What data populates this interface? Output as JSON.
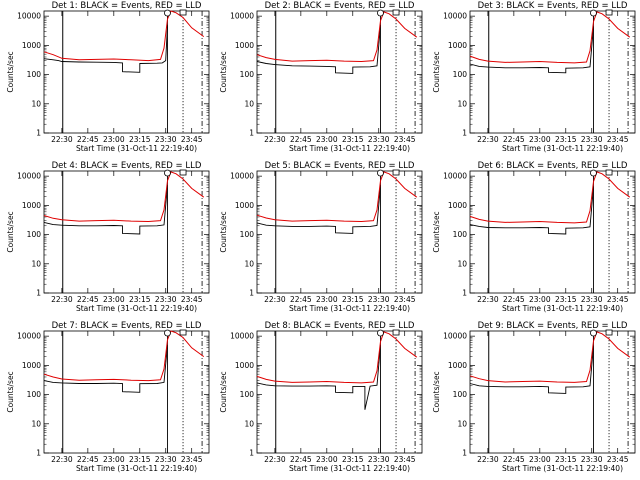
{
  "colors": {
    "events": "#000000",
    "lld": "#e00000"
  },
  "chart_data": [
    {
      "type": "line",
      "title": "Det 1: BLACK = Events, RED = LLD",
      "xlabel": "Start Time (31-Oct-11 22:19:40)",
      "ylabel": "Counts/sec",
      "x_ticks": [
        "22:30",
        "22:45",
        "23:00",
        "23:15",
        "23:30",
        "23:45"
      ],
      "y_ticks": [
        "1",
        "10",
        "100",
        "1000",
        "10000"
      ],
      "y_scale": "log",
      "ylim": [
        1,
        15000
      ],
      "series": [
        {
          "color": "black",
          "x": [
            "22:19:40",
            "22:25",
            "22:28",
            "22:30",
            "22:40",
            "22:50",
            "23:00",
            "23:05",
            "23:05",
            "23:15",
            "23:15",
            "23:25",
            "23:28",
            "23:30",
            "23:31"
          ],
          "y": [
            350,
            320,
            300,
            280,
            270,
            265,
            260,
            250,
            125,
            120,
            240,
            245,
            250,
            300,
            5000
          ]
        },
        {
          "color": "red",
          "x": [
            "22:19:40",
            "22:25",
            "22:30",
            "22:40",
            "22:50",
            "23:00",
            "23:10",
            "23:20",
            "23:27",
            "23:29",
            "23:31",
            "23:33",
            "23:36",
            "23:40",
            "23:45",
            "23:52"
          ],
          "y": [
            600,
            480,
            360,
            320,
            330,
            340,
            320,
            300,
            330,
            800,
            8000,
            15000,
            13000,
            9000,
            4000,
            2000
          ]
        }
      ]
    },
    {
      "type": "line",
      "title": "Det 2: BLACK = Events, RED = LLD",
      "xlabel": "Start Time (31-Oct-11 22:19:40)",
      "ylabel": "Counts/sec",
      "x_ticks": [
        "22:30",
        "22:45",
        "23:00",
        "23:15",
        "23:30",
        "23:45"
      ],
      "y_ticks": [
        "1",
        "10",
        "100",
        "1000",
        "10000"
      ],
      "y_scale": "log",
      "ylim": [
        1,
        15000
      ],
      "series": [
        {
          "color": "black",
          "x": [
            "22:19:40",
            "22:25",
            "22:30",
            "22:40",
            "22:50",
            "23:00",
            "23:05",
            "23:05",
            "23:15",
            "23:15",
            "23:25",
            "23:29",
            "23:31"
          ],
          "y": [
            280,
            240,
            220,
            200,
            195,
            190,
            185,
            115,
            110,
            180,
            185,
            200,
            5000
          ]
        },
        {
          "color": "red",
          "x": [
            "22:19:40",
            "22:25",
            "22:30",
            "22:40",
            "22:50",
            "23:00",
            "23:10",
            "23:20",
            "23:27",
            "23:29",
            "23:31",
            "23:33",
            "23:36",
            "23:40",
            "23:45",
            "23:52"
          ],
          "y": [
            480,
            380,
            330,
            290,
            300,
            310,
            290,
            280,
            300,
            700,
            7000,
            14000,
            12000,
            8000,
            3800,
            1900
          ]
        }
      ]
    },
    {
      "type": "line",
      "title": "Det 3: BLACK = Events, RED = LLD",
      "xlabel": "Start Time (31-Oct-11 22:19:40)",
      "ylabel": "Counts/sec",
      "x_ticks": [
        "22:30",
        "22:45",
        "23:00",
        "23:15",
        "23:30",
        "23:45"
      ],
      "y_ticks": [
        "1",
        "10",
        "100",
        "1000",
        "10000"
      ],
      "y_scale": "log",
      "ylim": [
        1,
        15000
      ],
      "series": [
        {
          "color": "black",
          "x": [
            "22:19:40",
            "22:25",
            "22:30",
            "22:40",
            "22:50",
            "23:00",
            "23:05",
            "23:05",
            "23:15",
            "23:15",
            "23:25",
            "23:29",
            "23:31"
          ],
          "y": [
            230,
            190,
            180,
            170,
            170,
            175,
            170,
            120,
            115,
            165,
            170,
            185,
            4500
          ]
        },
        {
          "color": "red",
          "x": [
            "22:19:40",
            "22:25",
            "22:30",
            "22:40",
            "22:50",
            "23:00",
            "23:10",
            "23:20",
            "23:27",
            "23:29",
            "23:31",
            "23:33",
            "23:36",
            "23:40",
            "23:45",
            "23:52"
          ],
          "y": [
            430,
            330,
            290,
            260,
            270,
            280,
            260,
            250,
            270,
            650,
            6500,
            14000,
            12000,
            8000,
            3800,
            1900
          ]
        }
      ]
    },
    {
      "type": "line",
      "title": "Det 4: BLACK = Events, RED = LLD",
      "xlabel": "Start Time (31-Oct-11 22:19:40)",
      "ylabel": "Counts/sec",
      "x_ticks": [
        "22:30",
        "22:45",
        "23:00",
        "23:15",
        "23:30",
        "23:45"
      ],
      "y_ticks": [
        "1",
        "10",
        "100",
        "1000",
        "10000"
      ],
      "y_scale": "log",
      "ylim": [
        1,
        15000
      ],
      "series": [
        {
          "color": "black",
          "x": [
            "22:19:40",
            "22:25",
            "22:30",
            "22:40",
            "22:50",
            "23:00",
            "23:05",
            "23:05",
            "23:15",
            "23:15",
            "23:25",
            "23:29",
            "23:31"
          ],
          "y": [
            260,
            220,
            210,
            200,
            200,
            205,
            200,
            110,
            105,
            195,
            200,
            215,
            5000
          ]
        },
        {
          "color": "red",
          "x": [
            "22:19:40",
            "22:25",
            "22:30",
            "22:40",
            "22:50",
            "23:00",
            "23:10",
            "23:20",
            "23:27",
            "23:29",
            "23:31",
            "23:33",
            "23:36",
            "23:40",
            "23:45",
            "23:52"
          ],
          "y": [
            450,
            360,
            320,
            290,
            300,
            310,
            290,
            280,
            300,
            700,
            7000,
            14000,
            12000,
            8000,
            3800,
            1900
          ]
        }
      ]
    },
    {
      "type": "line",
      "title": "Det 5: BLACK = Events, RED = LLD",
      "xlabel": "Start Time (31-Oct-11 22:19:40)",
      "ylabel": "Counts/sec",
      "x_ticks": [
        "22:30",
        "22:45",
        "23:00",
        "23:15",
        "23:30",
        "23:45"
      ],
      "y_ticks": [
        "1",
        "10",
        "100",
        "1000",
        "10000"
      ],
      "y_scale": "log",
      "ylim": [
        1,
        15000
      ],
      "series": [
        {
          "color": "black",
          "x": [
            "22:19:40",
            "22:25",
            "22:30",
            "22:40",
            "22:50",
            "23:00",
            "23:05",
            "23:05",
            "23:15",
            "23:15",
            "23:25",
            "23:29",
            "23:31"
          ],
          "y": [
            250,
            210,
            200,
            190,
            190,
            195,
            190,
            115,
            110,
            185,
            190,
            205,
            5000
          ]
        },
        {
          "color": "red",
          "x": [
            "22:19:40",
            "22:25",
            "22:30",
            "22:40",
            "22:50",
            "23:00",
            "23:10",
            "23:20",
            "23:27",
            "23:29",
            "23:31",
            "23:33",
            "23:36",
            "23:40",
            "23:45",
            "23:52"
          ],
          "y": [
            460,
            370,
            320,
            290,
            300,
            310,
            290,
            280,
            300,
            700,
            7000,
            14000,
            12000,
            8000,
            3800,
            1900
          ]
        }
      ]
    },
    {
      "type": "line",
      "title": "Det 6: BLACK = Events, RED = LLD",
      "xlabel": "Start Time (31-Oct-11 22:19:40)",
      "ylabel": "Counts/sec",
      "x_ticks": [
        "22:30",
        "22:45",
        "23:00",
        "23:15",
        "23:30",
        "23:45"
      ],
      "y_ticks": [
        "1",
        "10",
        "100",
        "1000",
        "10000"
      ],
      "y_scale": "log",
      "ylim": [
        1,
        15000
      ],
      "series": [
        {
          "color": "black",
          "x": [
            "22:19:40",
            "22:25",
            "22:30",
            "22:40",
            "22:50",
            "23:00",
            "23:05",
            "23:05",
            "23:15",
            "23:15",
            "23:25",
            "23:29",
            "23:31"
          ],
          "y": [
            220,
            190,
            175,
            170,
            170,
            175,
            170,
            110,
            105,
            165,
            170,
            185,
            4500
          ]
        },
        {
          "color": "red",
          "x": [
            "22:19:40",
            "22:25",
            "22:30",
            "22:40",
            "22:50",
            "23:00",
            "23:10",
            "23:20",
            "23:27",
            "23:29",
            "23:31",
            "23:33",
            "23:36",
            "23:40",
            "23:45",
            "23:52"
          ],
          "y": [
            420,
            330,
            290,
            260,
            270,
            280,
            260,
            250,
            270,
            650,
            6500,
            14000,
            12000,
            8000,
            3800,
            1900
          ]
        }
      ]
    },
    {
      "type": "line",
      "title": "Det 7: BLACK = Events, RED = LLD",
      "xlabel": "Start Time (31-Oct-11 22:19:40)",
      "ylabel": "Counts/sec",
      "x_ticks": [
        "22:30",
        "22:45",
        "23:00",
        "23:15",
        "23:30",
        "23:45"
      ],
      "y_ticks": [
        "1",
        "10",
        "100",
        "1000",
        "10000"
      ],
      "y_scale": "log",
      "ylim": [
        1,
        15000
      ],
      "series": [
        {
          "color": "black",
          "x": [
            "22:19:40",
            "22:25",
            "22:30",
            "22:40",
            "22:50",
            "23:00",
            "23:05",
            "23:05",
            "23:15",
            "23:15",
            "23:25",
            "23:29",
            "23:31"
          ],
          "y": [
            300,
            260,
            250,
            240,
            240,
            245,
            240,
            125,
            120,
            235,
            240,
            260,
            5000
          ]
        },
        {
          "color": "red",
          "x": [
            "22:19:40",
            "22:25",
            "22:30",
            "22:40",
            "22:50",
            "23:00",
            "23:10",
            "23:20",
            "23:27",
            "23:29",
            "23:31",
            "23:33",
            "23:36",
            "23:40",
            "23:45",
            "23:52"
          ],
          "y": [
            500,
            400,
            340,
            310,
            320,
            330,
            310,
            300,
            320,
            750,
            7500,
            15000,
            13000,
            9000,
            4000,
            2000
          ]
        }
      ]
    },
    {
      "type": "line",
      "title": "Det 8: BLACK = Events, RED = LLD",
      "xlabel": "Start Time (31-Oct-11 22:19:40)",
      "ylabel": "Counts/sec",
      "x_ticks": [
        "22:30",
        "22:45",
        "23:00",
        "23:15",
        "23:30",
        "23:45"
      ],
      "y_ticks": [
        "1",
        "10",
        "100",
        "1000",
        "10000"
      ],
      "y_scale": "log",
      "ylim": [
        1,
        15000
      ],
      "series": [
        {
          "color": "black",
          "x": [
            "22:19:40",
            "22:25",
            "22:30",
            "22:40",
            "22:50",
            "23:00",
            "23:05",
            "23:05",
            "23:15",
            "23:15",
            "23:22",
            "23:22",
            "23:25",
            "23:29",
            "23:31"
          ],
          "y": [
            250,
            215,
            200,
            195,
            195,
            200,
            195,
            120,
            115,
            190,
            190,
            30,
            195,
            210,
            5000
          ]
        },
        {
          "color": "red",
          "x": [
            "22:19:40",
            "22:25",
            "22:30",
            "22:40",
            "22:50",
            "23:00",
            "23:10",
            "23:20",
            "23:27",
            "23:29",
            "23:31",
            "23:33",
            "23:36",
            "23:40",
            "23:45",
            "23:52"
          ],
          "y": [
            420,
            330,
            290,
            260,
            270,
            280,
            260,
            250,
            270,
            650,
            6500,
            14000,
            12000,
            8000,
            3800,
            1900
          ]
        }
      ]
    },
    {
      "type": "line",
      "title": "Det 9: BLACK = Events, RED = LLD",
      "xlabel": "Start Time (31-Oct-11 22:19:40)",
      "ylabel": "Counts/sec",
      "x_ticks": [
        "22:30",
        "22:45",
        "23:00",
        "23:15",
        "23:30",
        "23:45"
      ],
      "y_ticks": [
        "1",
        "10",
        "100",
        "1000",
        "10000"
      ],
      "y_scale": "log",
      "ylim": [
        1,
        15000
      ],
      "series": [
        {
          "color": "black",
          "x": [
            "22:19:40",
            "22:25",
            "22:30",
            "22:40",
            "22:50",
            "23:00",
            "23:05",
            "23:05",
            "23:15",
            "23:15",
            "23:25",
            "23:29",
            "23:31"
          ],
          "y": [
            240,
            200,
            190,
            185,
            185,
            190,
            185,
            115,
            110,
            180,
            185,
            200,
            4800
          ]
        },
        {
          "color": "red",
          "x": [
            "22:19:40",
            "22:25",
            "22:30",
            "22:40",
            "22:50",
            "23:00",
            "23:10",
            "23:20",
            "23:27",
            "23:29",
            "23:31",
            "23:33",
            "23:36",
            "23:40",
            "23:45",
            "23:52"
          ],
          "y": [
            440,
            350,
            300,
            270,
            280,
            290,
            270,
            260,
            280,
            680,
            6800,
            14000,
            12000,
            8000,
            3800,
            1900
          ]
        }
      ]
    }
  ]
}
